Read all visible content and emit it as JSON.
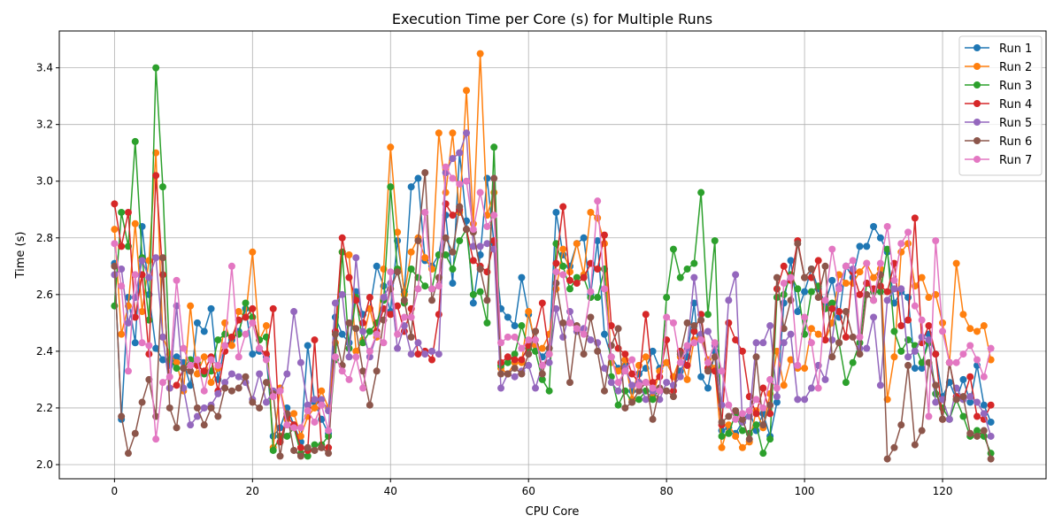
{
  "chart_data": {
    "type": "line",
    "title": "Execution Time per Core (s) for Multiple Runs",
    "xlabel": "CPU Core",
    "ylabel": "Time (s)",
    "xlim": [
      -8,
      135
    ],
    "ylim": [
      1.95,
      3.53
    ],
    "xticks": [
      0,
      20,
      40,
      60,
      80,
      100,
      120
    ],
    "yticks": [
      2.0,
      2.2,
      2.4,
      2.6,
      2.8,
      3.0,
      3.2,
      3.4
    ],
    "ytick_labels": [
      "2.0",
      "2.2",
      "2.4",
      "2.6",
      "2.8",
      "3.0",
      "3.2",
      "3.4"
    ],
    "grid": true,
    "legend_position": "top-right",
    "x": [
      0,
      1,
      2,
      3,
      4,
      5,
      6,
      7,
      8,
      9,
      10,
      11,
      12,
      13,
      14,
      15,
      16,
      17,
      18,
      19,
      20,
      21,
      22,
      23,
      24,
      25,
      26,
      27,
      28,
      29,
      30,
      31,
      32,
      33,
      34,
      35,
      36,
      37,
      38,
      39,
      40,
      41,
      42,
      43,
      44,
      45,
      46,
      47,
      48,
      49,
      50,
      51,
      52,
      53,
      54,
      55,
      56,
      57,
      58,
      59,
      60,
      61,
      62,
      63,
      64,
      65,
      66,
      67,
      68,
      69,
      70,
      71,
      72,
      73,
      74,
      75,
      76,
      77,
      78,
      79,
      80,
      81,
      82,
      83,
      84,
      85,
      86,
      87,
      88,
      89,
      90,
      91,
      92,
      93,
      94,
      95,
      96,
      97,
      98,
      99,
      100,
      101,
      102,
      103,
      104,
      105,
      106,
      107,
      108,
      109,
      110,
      111,
      112,
      113,
      114,
      115,
      116,
      117,
      118,
      119,
      120,
      121,
      122,
      123,
      124,
      125,
      126,
      127
    ],
    "series": [
      {
        "name": "Run 1",
        "color": "#1f77b4",
        "values": [
          2.71,
          2.16,
          2.59,
          2.43,
          2.84,
          2.6,
          2.41,
          2.37,
          2.35,
          2.38,
          2.36,
          2.28,
          2.5,
          2.47,
          2.55,
          2.3,
          2.42,
          2.44,
          2.47,
          2.55,
          2.39,
          2.4,
          2.38,
          2.1,
          2.13,
          2.2,
          2.14,
          2.08,
          2.42,
          2.22,
          2.16,
          2.11,
          2.52,
          2.46,
          2.43,
          2.61,
          2.53,
          2.55,
          2.7,
          2.63,
          2.54,
          2.79,
          2.61,
          2.98,
          3.01,
          2.72,
          2.7,
          2.74,
          2.88,
          2.64,
          3.1,
          2.86,
          2.57,
          2.74,
          3.01,
          2.78,
          2.55,
          2.52,
          2.49,
          2.66,
          2.53,
          2.42,
          2.38,
          2.41,
          2.89,
          2.74,
          2.7,
          2.78,
          2.8,
          2.6,
          2.79,
          2.46,
          2.38,
          2.34,
          2.35,
          2.26,
          2.32,
          2.34,
          2.4,
          2.34,
          2.36,
          2.31,
          2.33,
          2.38,
          2.57,
          2.31,
          2.27,
          2.4,
          2.12,
          2.13,
          2.11,
          2.15,
          2.19,
          2.12,
          2.18,
          2.1,
          2.22,
          2.57,
          2.72,
          2.54,
          2.61,
          2.69,
          2.62,
          2.57,
          2.65,
          2.52,
          2.7,
          2.66,
          2.77,
          2.77,
          2.84,
          2.8,
          2.75,
          2.57,
          2.61,
          2.59,
          2.34,
          2.34,
          2.46,
          2.39,
          2.24,
          2.29,
          2.23,
          2.3,
          2.22,
          2.35,
          2.21,
          2.15
        ]
      },
      {
        "name": "Run 2",
        "color": "#ff7f0e",
        "values": [
          2.83,
          2.46,
          2.56,
          2.85,
          2.54,
          2.72,
          3.1,
          2.45,
          2.39,
          2.36,
          2.26,
          2.56,
          2.32,
          2.38,
          2.29,
          2.34,
          2.5,
          2.42,
          2.54,
          2.52,
          2.75,
          2.44,
          2.49,
          2.06,
          2.27,
          2.16,
          2.18,
          2.1,
          2.17,
          2.2,
          2.26,
          2.2,
          2.43,
          2.75,
          2.74,
          2.4,
          2.44,
          2.55,
          2.45,
          2.69,
          3.12,
          2.82,
          2.6,
          2.75,
          2.8,
          2.73,
          2.69,
          3.17,
          2.96,
          3.17,
          2.89,
          3.32,
          2.85,
          3.45,
          2.88,
          2.96,
          2.34,
          2.32,
          2.36,
          2.36,
          2.54,
          2.42,
          2.41,
          2.46,
          2.62,
          2.76,
          2.68,
          2.78,
          2.67,
          2.89,
          2.87,
          2.78,
          2.36,
          2.33,
          2.37,
          2.23,
          2.35,
          2.38,
          2.24,
          2.33,
          2.36,
          2.31,
          2.38,
          2.3,
          2.44,
          2.45,
          2.37,
          2.34,
          2.06,
          2.14,
          2.1,
          2.06,
          2.08,
          2.19,
          2.13,
          2.25,
          2.4,
          2.28,
          2.37,
          2.34,
          2.34,
          2.48,
          2.46,
          2.44,
          2.5,
          2.67,
          2.64,
          2.64,
          2.68,
          2.71,
          2.66,
          2.69,
          2.23,
          2.38,
          2.75,
          2.78,
          2.63,
          2.66,
          2.59,
          2.6,
          2.5,
          2.36,
          2.71,
          2.53,
          2.48,
          2.47,
          2.49,
          2.37
        ]
      },
      {
        "name": "Run 3",
        "color": "#2ca02c",
        "values": [
          2.56,
          2.89,
          2.77,
          3.14,
          2.73,
          2.51,
          3.4,
          2.98,
          2.37,
          2.34,
          2.34,
          2.37,
          2.36,
          2.32,
          2.33,
          2.44,
          2.46,
          2.45,
          2.46,
          2.57,
          2.52,
          2.44,
          2.45,
          2.05,
          2.1,
          2.1,
          2.13,
          2.04,
          2.03,
          2.07,
          2.07,
          2.1,
          2.37,
          2.75,
          2.41,
          2.59,
          2.43,
          2.47,
          2.5,
          2.58,
          2.98,
          2.69,
          2.57,
          2.69,
          2.66,
          2.63,
          2.62,
          2.74,
          2.74,
          2.69,
          2.79,
          2.83,
          2.6,
          2.61,
          2.5,
          3.12,
          2.35,
          2.36,
          2.39,
          2.49,
          2.41,
          2.4,
          2.3,
          2.26,
          2.78,
          2.7,
          2.62,
          2.66,
          2.66,
          2.59,
          2.59,
          2.69,
          2.31,
          2.21,
          2.26,
          2.22,
          2.23,
          2.26,
          2.23,
          2.27,
          2.59,
          2.76,
          2.66,
          2.69,
          2.71,
          2.96,
          2.53,
          2.79,
          2.1,
          2.11,
          2.18,
          2.12,
          2.11,
          2.14,
          2.04,
          2.09,
          2.59,
          2.6,
          2.67,
          2.62,
          2.46,
          2.61,
          2.63,
          2.55,
          2.57,
          2.43,
          2.29,
          2.36,
          2.43,
          2.64,
          2.61,
          2.61,
          2.76,
          2.47,
          2.4,
          2.44,
          2.42,
          2.36,
          2.43,
          2.25,
          2.2,
          2.16,
          2.23,
          2.17,
          2.1,
          2.12,
          2.1,
          2.04
        ]
      },
      {
        "name": "Run 4",
        "color": "#d62728",
        "values": [
          2.92,
          2.77,
          2.89,
          2.52,
          2.67,
          2.39,
          3.02,
          2.67,
          2.27,
          2.28,
          2.34,
          2.35,
          2.35,
          2.33,
          2.38,
          2.26,
          2.4,
          2.45,
          2.51,
          2.52,
          2.55,
          2.41,
          2.39,
          2.55,
          2.08,
          2.17,
          2.14,
          2.06,
          2.05,
          2.44,
          2.06,
          2.06,
          2.47,
          2.8,
          2.66,
          2.58,
          2.5,
          2.59,
          2.47,
          2.55,
          2.53,
          2.56,
          2.47,
          2.55,
          2.39,
          2.4,
          2.37,
          2.53,
          2.92,
          2.88,
          2.9,
          2.83,
          2.72,
          2.7,
          2.68,
          2.79,
          2.36,
          2.38,
          2.37,
          2.37,
          2.42,
          2.47,
          2.57,
          2.39,
          2.71,
          2.91,
          2.65,
          2.64,
          2.66,
          2.71,
          2.69,
          2.81,
          2.49,
          2.41,
          2.39,
          2.32,
          2.29,
          2.53,
          2.29,
          2.31,
          2.44,
          2.26,
          2.4,
          2.35,
          2.47,
          2.53,
          2.34,
          2.33,
          2.14,
          2.5,
          2.44,
          2.4,
          2.24,
          2.18,
          2.27,
          2.18,
          2.62,
          2.7,
          2.65,
          2.79,
          2.66,
          2.66,
          2.72,
          2.44,
          2.55,
          2.54,
          2.45,
          2.68,
          2.6,
          2.64,
          2.62,
          2.63,
          2.61,
          2.71,
          2.49,
          2.51,
          2.87,
          2.43,
          2.49,
          2.39,
          2.16,
          2.36,
          2.24,
          2.23,
          2.31,
          2.17,
          2.16,
          2.21
        ]
      },
      {
        "name": "Run 5",
        "color": "#9467bd",
        "values": [
          2.67,
          2.69,
          2.5,
          2.59,
          2.72,
          2.66,
          2.73,
          2.45,
          2.27,
          2.56,
          2.27,
          2.14,
          2.17,
          2.2,
          2.21,
          2.25,
          2.29,
          2.32,
          2.31,
          2.29,
          2.23,
          2.32,
          2.22,
          2.26,
          2.26,
          2.32,
          2.54,
          2.36,
          2.21,
          2.23,
          2.23,
          2.19,
          2.57,
          2.6,
          2.38,
          2.73,
          2.47,
          2.38,
          2.46,
          2.59,
          2.64,
          2.41,
          2.49,
          2.39,
          2.43,
          2.39,
          2.4,
          2.39,
          3.03,
          3.08,
          3.1,
          3.17,
          2.77,
          2.77,
          2.78,
          2.76,
          2.27,
          2.32,
          2.31,
          2.33,
          2.35,
          2.27,
          2.35,
          2.36,
          2.55,
          2.45,
          2.54,
          2.47,
          2.48,
          2.44,
          2.43,
          2.34,
          2.29,
          2.26,
          2.34,
          2.28,
          2.29,
          2.23,
          2.26,
          2.23,
          2.29,
          2.28,
          2.31,
          2.41,
          2.66,
          2.46,
          2.47,
          2.42,
          2.21,
          2.58,
          2.67,
          2.15,
          2.17,
          2.43,
          2.43,
          2.49,
          2.24,
          2.43,
          2.46,
          2.23,
          2.23,
          2.27,
          2.35,
          2.3,
          2.44,
          2.63,
          2.7,
          2.69,
          2.41,
          2.41,
          2.52,
          2.28,
          2.58,
          2.62,
          2.62,
          2.38,
          2.4,
          2.45,
          2.44,
          2.22,
          2.23,
          2.16,
          2.27,
          2.23,
          2.24,
          2.22,
          2.18,
          2.1
        ]
      },
      {
        "name": "Run 6",
        "color": "#8c564b",
        "values": [
          2.7,
          2.17,
          2.04,
          2.11,
          2.22,
          2.3,
          2.17,
          2.73,
          2.2,
          2.13,
          2.34,
          2.33,
          2.2,
          2.14,
          2.2,
          2.17,
          2.27,
          2.26,
          2.27,
          2.31,
          2.22,
          2.2,
          2.29,
          2.25,
          2.03,
          2.18,
          2.05,
          2.03,
          2.06,
          2.05,
          2.06,
          2.04,
          2.46,
          2.35,
          2.5,
          2.48,
          2.33,
          2.21,
          2.33,
          2.51,
          2.62,
          2.68,
          2.58,
          2.45,
          2.79,
          3.03,
          2.58,
          2.66,
          2.8,
          2.75,
          2.91,
          2.83,
          2.82,
          2.69,
          2.58,
          3.01,
          2.32,
          2.32,
          2.34,
          2.32,
          2.39,
          2.47,
          2.32,
          2.41,
          2.64,
          2.5,
          2.29,
          2.49,
          2.39,
          2.52,
          2.4,
          2.26,
          2.42,
          2.48,
          2.2,
          2.22,
          2.26,
          2.29,
          2.16,
          2.27,
          2.26,
          2.24,
          2.39,
          2.5,
          2.49,
          2.51,
          2.33,
          2.38,
          2.15,
          2.17,
          2.19,
          2.16,
          2.09,
          2.38,
          2.14,
          2.21,
          2.66,
          2.48,
          2.58,
          2.78,
          2.66,
          2.69,
          2.59,
          2.7,
          2.38,
          2.43,
          2.54,
          2.45,
          2.39,
          2.6,
          2.58,
          2.67,
          2.02,
          2.06,
          2.14,
          2.35,
          2.07,
          2.12,
          2.36,
          2.28,
          2.16,
          2.36,
          2.23,
          2.24,
          2.11,
          2.1,
          2.12,
          2.02
        ]
      },
      {
        "name": "Run 7",
        "color": "#e377c2",
        "values": [
          2.78,
          2.63,
          2.33,
          2.67,
          2.43,
          2.42,
          2.09,
          2.29,
          2.31,
          2.65,
          2.41,
          2.35,
          2.37,
          2.26,
          2.37,
          2.35,
          2.42,
          2.7,
          2.38,
          2.46,
          2.5,
          2.41,
          2.37,
          2.24,
          2.26,
          2.14,
          2.13,
          2.13,
          2.19,
          2.15,
          2.21,
          2.12,
          2.38,
          2.33,
          2.3,
          2.38,
          2.27,
          2.4,
          2.46,
          2.43,
          2.68,
          2.46,
          2.52,
          2.52,
          2.62,
          2.89,
          2.62,
          2.63,
          3.05,
          3.01,
          2.99,
          3.0,
          2.83,
          2.96,
          2.84,
          2.88,
          2.43,
          2.45,
          2.45,
          2.41,
          2.44,
          2.44,
          2.35,
          2.39,
          2.68,
          2.67,
          2.5,
          2.48,
          2.46,
          2.61,
          2.93,
          2.62,
          2.38,
          2.29,
          2.33,
          2.37,
          2.28,
          2.29,
          2.27,
          2.26,
          2.52,
          2.5,
          2.36,
          2.42,
          2.43,
          2.44,
          2.36,
          2.43,
          2.33,
          2.21,
          2.16,
          2.18,
          2.19,
          2.23,
          2.2,
          2.3,
          2.27,
          2.64,
          2.66,
          2.35,
          2.52,
          2.43,
          2.27,
          2.58,
          2.76,
          2.62,
          2.7,
          2.72,
          2.45,
          2.71,
          2.58,
          2.71,
          2.84,
          2.65,
          2.78,
          2.82,
          2.56,
          2.51,
          2.17,
          2.79,
          2.47,
          2.36,
          2.36,
          2.39,
          2.42,
          2.37,
          2.31,
          2.41
        ]
      }
    ]
  }
}
